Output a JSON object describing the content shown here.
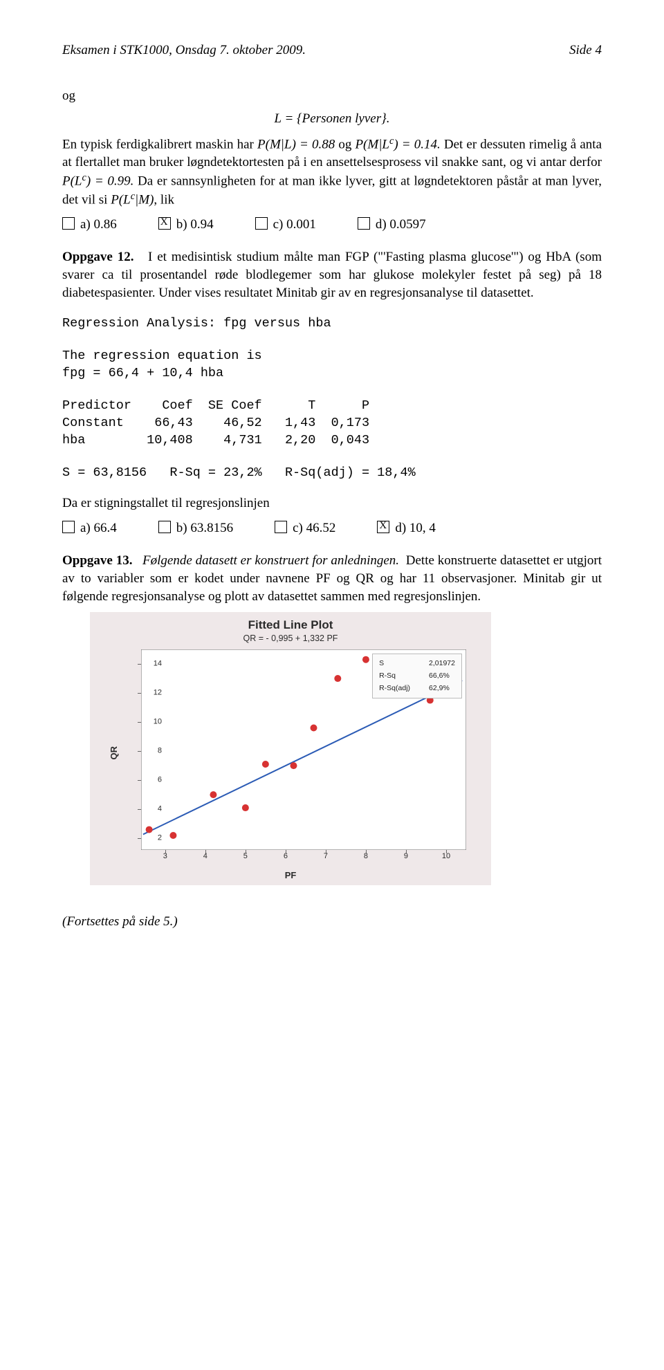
{
  "header": {
    "left": "Eksamen i STK1000, Onsdag 7. oktober 2009.",
    "right": "Side 4"
  },
  "intro_word": "og",
  "eq1": "L = {Personen lyver}.",
  "para1_a": "En typisk ferdigkalibrert maskin har ",
  "para1_b": "P(M|L) = 0.88",
  "para1_c": " og ",
  "para1_d": "P(M|L",
  "para1_e": ") = 0.14.",
  "para1_rest": "Det er dessuten rimelig å anta at flertallet man bruker løgndetektortesten på i en ansettelsesprosess vil snakke sant, og vi antar derfor ",
  "para1_plc": "P(L",
  "para1_plcval": ") = 0.99.",
  "para1_tail": "Da er sannsynligheten for at man ikke lyver, gitt at løgndetektoren påstår at man lyver, det vil si ",
  "para1_plcm": "P(L",
  "para1_plcm2": "|M)",
  "para1_lik": ", lik",
  "q11": {
    "a": "a) 0.86",
    "b": "b) 0.94",
    "c": "c) 0.001",
    "d": "d) 0.0597"
  },
  "op12_label": "Oppgave 12.",
  "op12_text": "I et medisintisk studium målte man FGP (\"'Fasting plasma glucose'\") og HbA (som svarer ca til prosentandel røde blodlegemer som har glukose molekyler festet på seg) på 18 diabetespasienter. Under vises resultatet Minitab gir av en regresjonsanalyse til datasettet.",
  "mono1": "Regression Analysis: fpg versus hba",
  "mono2": "The regression equation is\nfpg = 66,4 + 10,4 hba",
  "mono3": "Predictor    Coef  SE Coef      T      P\nConstant    66,43    46,52   1,43  0,173\nhba        10,408    4,731   2,20  0,043",
  "mono4": "S = 63,8156   R-Sq = 23,2%   R-Sq(adj) = 18,4%",
  "op12_tail": "Da er stigningstallet til regresjonslinjen",
  "q12": {
    "a": "a) 66.4",
    "b": "b) 63.8156",
    "c": "c) 46.52",
    "d": "d) 10, 4"
  },
  "op13_label": "Oppgave 13.",
  "op13_it": "Følgende datasett er konstruert for anledningen.",
  "op13_rest": "Dette konstruerte datasettet er utgjort av to variabler som er kodet under navnene PF og QR og har 11 observasjoner.  Minitab gir ut følgende regresjonsanalyse og plott av datasettet sammen med regresjonslinjen.",
  "plot": {
    "title": "Fitted Line Plot",
    "subtitle": "QR =  - 0,995 + 1,332 PF",
    "xlabel": "PF",
    "ylabel": "QR",
    "bg": "#efe8e9",
    "plot_bg": "#ffffff",
    "point_color": "#d73232",
    "line_color": "#2b5bb5",
    "x_min": 2.4,
    "x_max": 10.5,
    "y_min": 1.2,
    "y_max": 15,
    "xticks": [
      3,
      4,
      5,
      6,
      7,
      8,
      9,
      10
    ],
    "yticks": [
      2,
      4,
      6,
      8,
      10,
      12,
      14
    ],
    "points": [
      [
        2.6,
        2.6
      ],
      [
        3.2,
        2.2
      ],
      [
        4.2,
        5.0
      ],
      [
        5.0,
        4.1
      ],
      [
        5.5,
        7.1
      ],
      [
        6.2,
        7.0
      ],
      [
        6.7,
        9.6
      ],
      [
        7.3,
        13.0
      ],
      [
        8.0,
        14.3
      ],
      [
        8.6,
        13.1
      ],
      [
        9.6,
        11.5
      ]
    ],
    "line_x1": 2.45,
    "line_y1": 2.27,
    "line_x2": 10.4,
    "line_y2": 12.86,
    "stats": {
      "s_label": "S",
      "s_val": "2,01972",
      "rsq_label": "R-Sq",
      "rsq_val": "66,6%",
      "rsqa_label": "R-Sq(adj)",
      "rsqa_val": "62,9%"
    }
  },
  "continue": "(Fortsettes på side 5.)"
}
